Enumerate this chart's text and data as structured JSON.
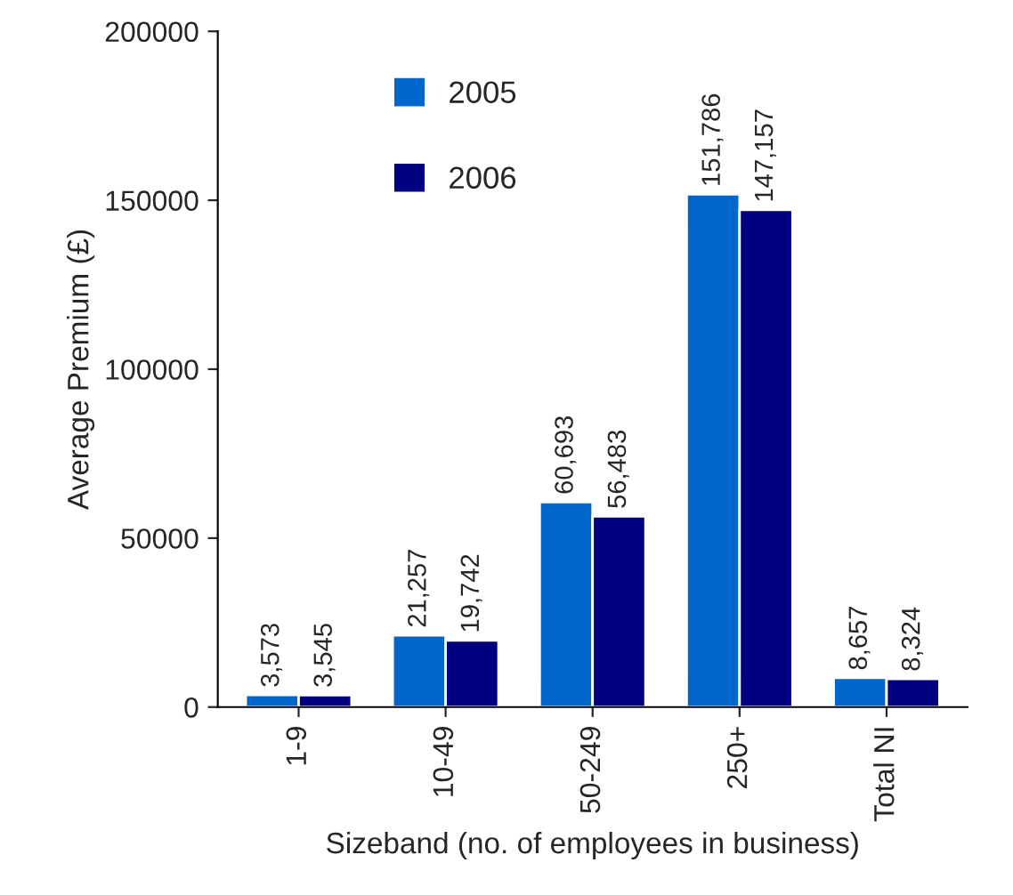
{
  "chart_data": {
    "type": "bar",
    "xlabel": "Sizeband (no. of employees in business)",
    "ylabel": "Average Premium (£)",
    "categories": [
      "1-9",
      "10-49",
      "50-249",
      "250+",
      "Total NI"
    ],
    "series": [
      {
        "name": "2005",
        "color": "#0066cc",
        "values": [
          3573,
          21257,
          60693,
          151786,
          8657
        ],
        "value_labels": [
          "3,573",
          "21,257",
          "60,693",
          "151,786",
          "8,657"
        ]
      },
      {
        "name": "2006",
        "color": "#000080",
        "values": [
          3545,
          19742,
          56483,
          147157,
          8324
        ],
        "value_labels": [
          "3,545",
          "19,742",
          "56,483",
          "147,157",
          "8,324"
        ]
      }
    ],
    "ylim": [
      0,
      200000
    ],
    "yticks": [
      0,
      50000,
      100000,
      150000,
      200000
    ],
    "grid": false,
    "legend": "top left"
  }
}
